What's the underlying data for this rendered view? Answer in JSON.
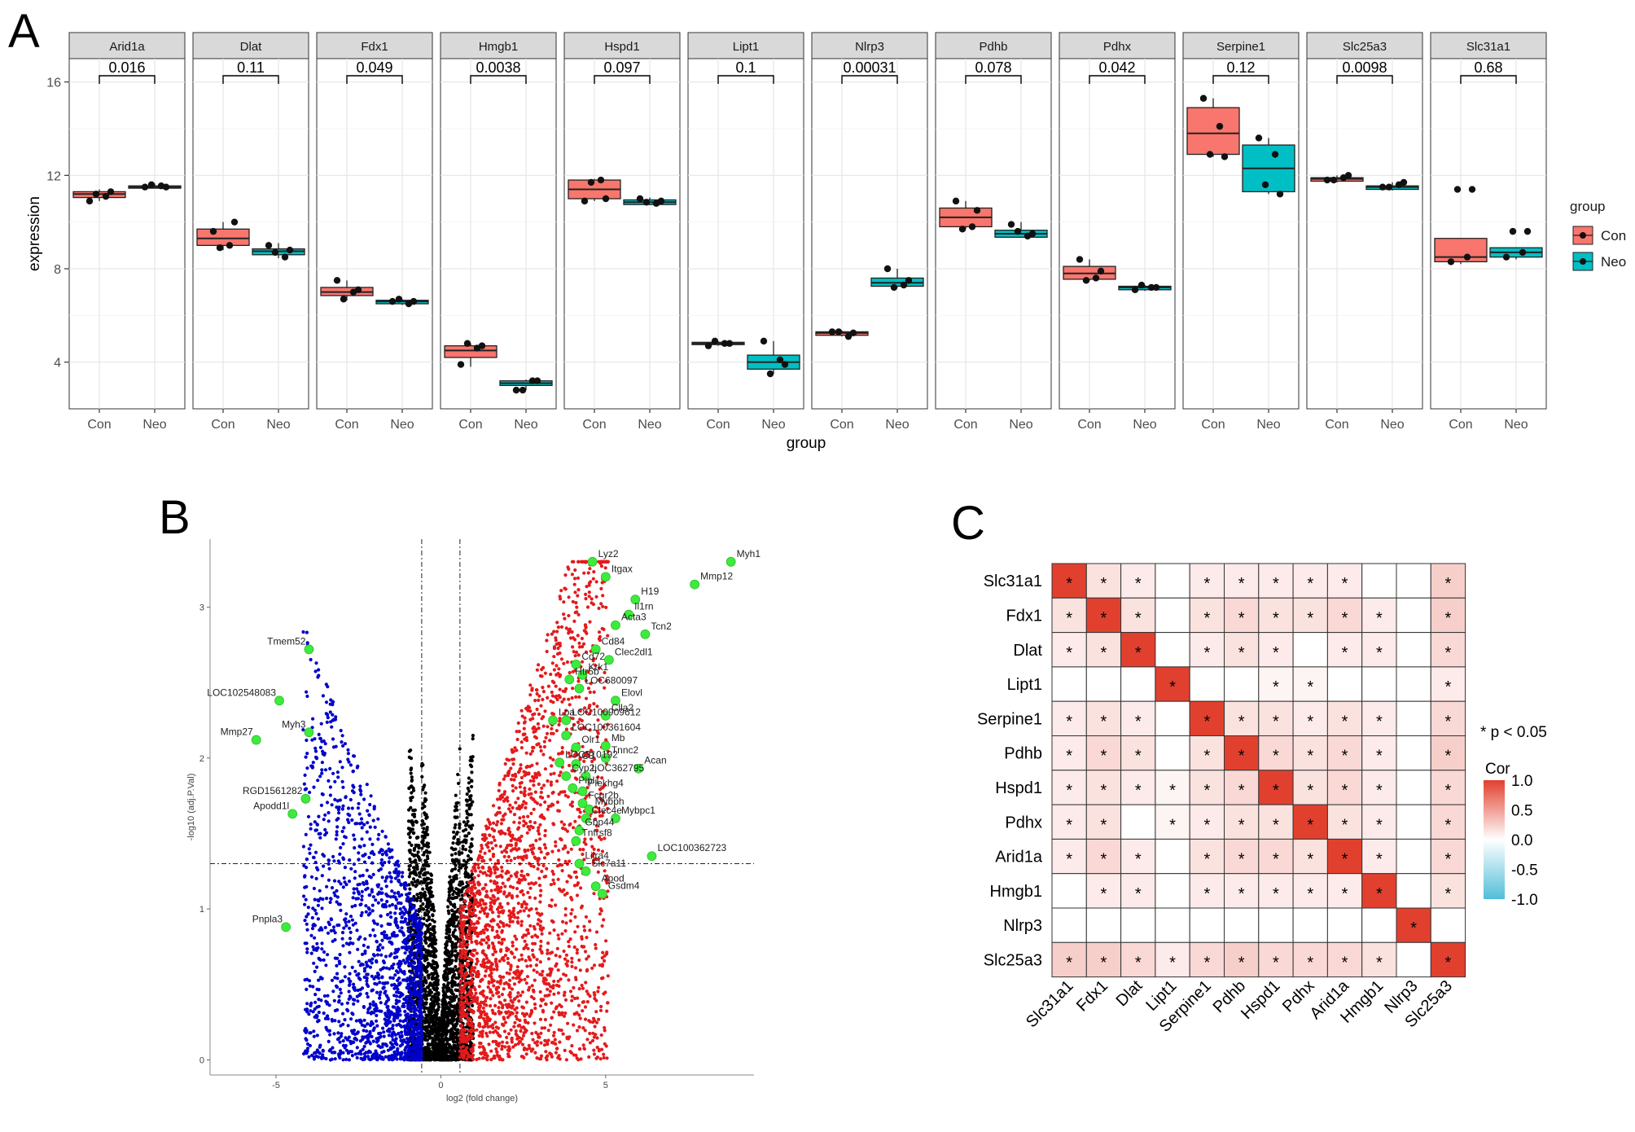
{
  "panels": {
    "a": "A",
    "b": "B",
    "c": "C"
  },
  "colors": {
    "con": "#F8766D",
    "neo": "#00BFC4",
    "down": "#0000CC",
    "up": "#E41A1C",
    "ns": "#000000",
    "highlight": "#3DEB3D"
  },
  "chart_data": [
    {
      "type": "box",
      "panel": "A",
      "ylabel": "expression",
      "xlabel": "group",
      "ylim": [
        2,
        17
      ],
      "yticks": [
        4,
        8,
        12,
        16
      ],
      "groups": [
        "Con",
        "Neo"
      ],
      "legend": {
        "title": "group",
        "items": [
          "Con",
          "Neo"
        ],
        "position": "right"
      },
      "facets": [
        {
          "gene": "Arid1a",
          "p": "0.016",
          "con": {
            "q1": 11.05,
            "median": 11.2,
            "q3": 11.3,
            "min": 10.9,
            "max": 11.4,
            "points": [
              10.9,
              11.1,
              11.2,
              11.3
            ]
          },
          "neo": {
            "q1": 11.45,
            "median": 11.5,
            "q3": 11.55,
            "min": 11.45,
            "max": 11.65,
            "points": [
              11.5,
              11.55,
              11.6,
              11.5
            ]
          }
        },
        {
          "gene": "Dlat",
          "p": "0.11",
          "con": {
            "q1": 9.0,
            "median": 9.3,
            "q3": 9.7,
            "min": 8.8,
            "max": 10.0,
            "points": [
              9.6,
              9.0,
              8.9,
              10.0
            ]
          },
          "neo": {
            "q1": 8.6,
            "median": 8.75,
            "q3": 8.85,
            "min": 8.45,
            "max": 9.1,
            "points": [
              9.0,
              8.5,
              8.7,
              8.8
            ]
          }
        },
        {
          "gene": "Fdx1",
          "p": "0.049",
          "con": {
            "q1": 6.85,
            "median": 7.0,
            "q3": 7.2,
            "min": 6.65,
            "max": 7.5,
            "points": [
              7.5,
              7.0,
              6.7,
              7.1
            ]
          },
          "neo": {
            "q1": 6.5,
            "median": 6.6,
            "q3": 6.65,
            "min": 6.45,
            "max": 6.7,
            "points": [
              6.6,
              6.5,
              6.7,
              6.6
            ]
          }
        },
        {
          "gene": "Hmgb1",
          "p": "0.0038",
          "con": {
            "q1": 4.2,
            "median": 4.5,
            "q3": 4.7,
            "min": 3.8,
            "max": 4.8,
            "points": [
              3.9,
              4.6,
              4.8,
              4.7
            ]
          },
          "neo": {
            "q1": 3.0,
            "median": 3.1,
            "q3": 3.2,
            "min": 2.8,
            "max": 3.25,
            "points": [
              2.8,
              3.2,
              2.8,
              3.2
            ]
          }
        },
        {
          "gene": "Hspd1",
          "p": "0.097",
          "con": {
            "q1": 11.0,
            "median": 11.4,
            "q3": 11.8,
            "min": 10.9,
            "max": 11.85,
            "points": [
              10.9,
              11.8,
              11.7,
              11.0
            ]
          },
          "neo": {
            "q1": 10.75,
            "median": 10.85,
            "q3": 10.95,
            "min": 10.75,
            "max": 11.05,
            "points": [
              11.0,
              10.8,
              10.85,
              10.9
            ]
          }
        },
        {
          "gene": "Lipt1",
          "p": "0.1",
          "con": {
            "q1": 4.75,
            "median": 4.8,
            "q3": 4.85,
            "min": 4.7,
            "max": 4.9,
            "points": [
              4.7,
              4.8,
              4.9,
              4.8
            ]
          },
          "neo": {
            "q1": 3.7,
            "median": 4.0,
            "q3": 4.3,
            "min": 3.5,
            "max": 4.9,
            "points": [
              4.9,
              4.1,
              3.5,
              3.9
            ]
          }
        },
        {
          "gene": "Nlrp3",
          "p": "0.00031",
          "con": {
            "q1": 5.15,
            "median": 5.25,
            "q3": 5.3,
            "min": 5.1,
            "max": 5.35,
            "points": [
              5.3,
              5.1,
              5.3,
              5.25
            ]
          },
          "neo": {
            "q1": 7.25,
            "median": 7.4,
            "q3": 7.6,
            "min": 7.2,
            "max": 8.0,
            "points": [
              8.0,
              7.3,
              7.2,
              7.5
            ]
          }
        },
        {
          "gene": "Pdhb",
          "p": "0.078",
          "con": {
            "q1": 9.8,
            "median": 10.2,
            "q3": 10.6,
            "min": 9.7,
            "max": 10.9,
            "points": [
              10.9,
              9.8,
              9.7,
              10.5
            ]
          },
          "neo": {
            "q1": 9.35,
            "median": 9.5,
            "q3": 9.65,
            "min": 9.35,
            "max": 10.0,
            "points": [
              9.9,
              9.4,
              9.6,
              9.5
            ]
          }
        },
        {
          "gene": "Pdhx",
          "p": "0.042",
          "con": {
            "q1": 7.55,
            "median": 7.8,
            "q3": 8.1,
            "min": 7.5,
            "max": 8.4,
            "points": [
              8.4,
              7.6,
              7.5,
              7.9
            ]
          },
          "neo": {
            "q1": 7.1,
            "median": 7.2,
            "q3": 7.25,
            "min": 7.05,
            "max": 7.3,
            "points": [
              7.1,
              7.2,
              7.3,
              7.2
            ]
          }
        },
        {
          "gene": "Serpine1",
          "p": "0.12",
          "con": {
            "q1": 12.9,
            "median": 13.8,
            "q3": 14.9,
            "min": 12.8,
            "max": 15.3,
            "points": [
              15.3,
              14.1,
              12.9,
              12.8
            ]
          },
          "neo": {
            "q1": 11.3,
            "median": 12.3,
            "q3": 13.3,
            "min": 11.2,
            "max": 13.6,
            "points": [
              13.6,
              12.9,
              11.6,
              11.2
            ]
          }
        },
        {
          "gene": "Slc25a3",
          "p": "0.0098",
          "con": {
            "q1": 11.75,
            "median": 11.85,
            "q3": 11.9,
            "min": 11.7,
            "max": 12.0,
            "points": [
              11.8,
              11.9,
              11.8,
              12.0
            ]
          },
          "neo": {
            "q1": 11.4,
            "median": 11.5,
            "q3": 11.55,
            "min": 11.35,
            "max": 11.7,
            "points": [
              11.5,
              11.6,
              11.5,
              11.7
            ]
          }
        },
        {
          "gene": "Slc31a1",
          "p": "0.68",
          "con": {
            "q1": 8.3,
            "median": 8.5,
            "q3": 9.3,
            "min": 8.2,
            "max": 9.3,
            "points": [
              8.3,
              8.5,
              11.4,
              11.4
            ]
          },
          "neo": {
            "q1": 8.5,
            "median": 8.7,
            "q3": 8.9,
            "min": 8.4,
            "max": 8.9,
            "points": [
              8.5,
              8.7,
              9.6,
              9.6
            ]
          }
        }
      ]
    },
    {
      "type": "scatter",
      "panel": "B",
      "title": "",
      "xlabel": "log2 (fold change)",
      "ylabel": "-log10 (adj.P.Val)",
      "xlim": [
        -7,
        9.5
      ],
      "ylim": [
        -0.1,
        3.45
      ],
      "xticks": [
        -5,
        0,
        5
      ],
      "yticks": [
        0,
        1,
        2,
        3
      ],
      "fc_cutoff": 0.58,
      "p_cutoff": 1.3,
      "labeled_genes": [
        {
          "label": "Myh1",
          "x": 8.8,
          "y": 3.3
        },
        {
          "label": "Lyz2",
          "x": 4.6,
          "y": 3.3
        },
        {
          "label": "Itgax",
          "x": 5.0,
          "y": 3.2
        },
        {
          "label": "H19",
          "x": 5.9,
          "y": 3.05
        },
        {
          "label": "Mmp12",
          "x": 7.7,
          "y": 3.15
        },
        {
          "label": "Il1rn",
          "x": 5.7,
          "y": 2.95
        },
        {
          "label": "Acta3",
          "x": 5.3,
          "y": 2.88
        },
        {
          "label": "Tcn2",
          "x": 6.2,
          "y": 2.82
        },
        {
          "label": "Cd84",
          "x": 4.7,
          "y": 2.72
        },
        {
          "label": "Cd72",
          "x": 4.1,
          "y": 2.62
        },
        {
          "label": "Clec2dl1",
          "x": 5.1,
          "y": 2.65
        },
        {
          "label": "Krk1",
          "x": 4.3,
          "y": 2.55
        },
        {
          "label": "Htr5b",
          "x": 3.9,
          "y": 2.52
        },
        {
          "label": "LOC680097",
          "x": 4.2,
          "y": 2.46
        },
        {
          "label": "Elovl",
          "x": 5.3,
          "y": 2.38
        },
        {
          "label": "Clla2",
          "x": 5.0,
          "y": 2.28
        },
        {
          "label": "Lpa",
          "x": 3.4,
          "y": 2.25
        },
        {
          "label": "LOC100909612",
          "x": 3.8,
          "y": 2.25
        },
        {
          "label": "LOC100361604",
          "x": 3.8,
          "y": 2.15
        },
        {
          "label": "Olr1",
          "x": 4.1,
          "y": 2.07
        },
        {
          "label": "Mb",
          "x": 5.0,
          "y": 2.08
        },
        {
          "label": "Tnnc2",
          "x": 5.0,
          "y": 2.0
        },
        {
          "label": "Acan",
          "x": 6.0,
          "y": 1.93
        },
        {
          "label": "LOC310192",
          "x": 3.6,
          "y": 1.97
        },
        {
          "label": "C3",
          "x": 4.1,
          "y": 1.96
        },
        {
          "label": "LOC362795",
          "x": 4.4,
          "y": 1.88
        },
        {
          "label": "Cyp2j",
          "x": 3.8,
          "y": 1.88
        },
        {
          "label": "Pipl1",
          "x": 4.0,
          "y": 1.8
        },
        {
          "label": "Plekhg4",
          "x": 4.3,
          "y": 1.78
        },
        {
          "label": "Fcgr2b",
          "x": 4.3,
          "y": 1.7
        },
        {
          "label": "Mybph",
          "x": 4.5,
          "y": 1.66
        },
        {
          "label": "Clec4e",
          "x": 4.4,
          "y": 1.6
        },
        {
          "label": "Mybpc1",
          "x": 5.3,
          "y": 1.6
        },
        {
          "label": "Gbp44",
          "x": 4.2,
          "y": 1.52
        },
        {
          "label": "Tnfrsf8",
          "x": 4.1,
          "y": 1.45
        },
        {
          "label": "LOC100362723",
          "x": 6.4,
          "y": 1.35
        },
        {
          "label": "Lilra4",
          "x": 4.2,
          "y": 1.3
        },
        {
          "label": "Slc7a11",
          "x": 4.4,
          "y": 1.25
        },
        {
          "label": "Apod",
          "x": 4.7,
          "y": 1.15
        },
        {
          "label": "Gsdm4",
          "x": 4.9,
          "y": 1.1
        },
        {
          "label": "Tmem52",
          "x": -4.0,
          "y": 2.72
        },
        {
          "label": "LOC102548083",
          "x": -4.9,
          "y": 2.38
        },
        {
          "label": "Mmp27",
          "x": -5.6,
          "y": 2.12
        },
        {
          "label": "Myh3",
          "x": -4.0,
          "y": 2.17
        },
        {
          "label": "RGD1561282",
          "x": -4.1,
          "y": 1.73
        },
        {
          "label": "Apodd1l",
          "x": -4.5,
          "y": 1.63
        },
        {
          "label": "Pnpla3",
          "x": -4.7,
          "y": 0.88
        }
      ]
    },
    {
      "type": "heatmap",
      "panel": "C",
      "genes": [
        "Slc31a1",
        "Fdx1",
        "Dlat",
        "Lipt1",
        "Serpine1",
        "Pdhb",
        "Hspd1",
        "Pdhx",
        "Arid1a",
        "Hmgb1",
        "Nlrp3",
        "Slc25a3"
      ],
      "legend_title": "Cor",
      "legend_ticks": [
        "1.0",
        "0.5",
        "0.0",
        "-0.5",
        "-1.0"
      ],
      "note": "* p < 0.05",
      "matrix": [
        [
          1.0,
          0.15,
          0.1,
          0.0,
          0.1,
          0.1,
          0.1,
          0.1,
          0.1,
          0.0,
          0.0,
          0.25
        ],
        [
          0.15,
          1.0,
          0.15,
          0.0,
          0.15,
          0.2,
          0.15,
          0.15,
          0.2,
          0.1,
          0.0,
          0.25
        ],
        [
          0.1,
          0.15,
          1.0,
          0.0,
          0.1,
          0.15,
          0.1,
          0.0,
          0.1,
          0.1,
          0.0,
          0.2
        ],
        [
          0.0,
          0.0,
          0.0,
          1.0,
          0.0,
          0.0,
          0.05,
          0.05,
          0.0,
          0.0,
          0.0,
          0.1
        ],
        [
          0.1,
          0.15,
          0.1,
          0.0,
          1.0,
          0.15,
          0.15,
          0.1,
          0.15,
          0.1,
          0.0,
          0.2
        ],
        [
          0.1,
          0.2,
          0.15,
          0.0,
          0.15,
          1.0,
          0.2,
          0.15,
          0.2,
          0.1,
          0.0,
          0.25
        ],
        [
          0.1,
          0.15,
          0.1,
          0.05,
          0.15,
          0.2,
          1.0,
          0.15,
          0.2,
          0.1,
          0.0,
          0.2
        ],
        [
          0.1,
          0.15,
          0.0,
          0.05,
          0.1,
          0.15,
          0.15,
          1.0,
          0.15,
          0.1,
          0.0,
          0.2
        ],
        [
          0.1,
          0.2,
          0.1,
          0.0,
          0.15,
          0.2,
          0.2,
          0.15,
          1.0,
          0.1,
          0.0,
          0.2
        ],
        [
          0.0,
          0.1,
          0.1,
          0.0,
          0.1,
          0.1,
          0.1,
          0.1,
          0.1,
          1.0,
          0.0,
          0.15
        ],
        [
          0.0,
          0.0,
          0.0,
          0.0,
          0.0,
          0.0,
          0.0,
          0.0,
          0.0,
          0.0,
          1.0,
          0.0
        ],
        [
          0.25,
          0.25,
          0.2,
          0.1,
          0.2,
          0.25,
          0.2,
          0.2,
          0.2,
          0.15,
          0.0,
          1.0
        ]
      ],
      "stars": [
        [
          1,
          1,
          1,
          0,
          1,
          1,
          1,
          1,
          1,
          0,
          0,
          1
        ],
        [
          1,
          1,
          1,
          0,
          1,
          1,
          1,
          1,
          1,
          1,
          0,
          1
        ],
        [
          1,
          1,
          1,
          0,
          1,
          1,
          1,
          0,
          1,
          1,
          0,
          1
        ],
        [
          0,
          0,
          0,
          1,
          0,
          0,
          1,
          1,
          0,
          0,
          0,
          1
        ],
        [
          1,
          1,
          1,
          0,
          1,
          1,
          1,
          1,
          1,
          1,
          0,
          1
        ],
        [
          1,
          1,
          1,
          0,
          1,
          1,
          1,
          1,
          1,
          1,
          0,
          1
        ],
        [
          1,
          1,
          1,
          1,
          1,
          1,
          1,
          1,
          1,
          1,
          0,
          1
        ],
        [
          1,
          1,
          0,
          1,
          1,
          1,
          1,
          1,
          1,
          1,
          0,
          1
        ],
        [
          1,
          1,
          1,
          0,
          1,
          1,
          1,
          1,
          1,
          1,
          0,
          1
        ],
        [
          0,
          1,
          1,
          0,
          1,
          1,
          1,
          1,
          1,
          1,
          0,
          1
        ],
        [
          0,
          0,
          0,
          0,
          0,
          0,
          0,
          0,
          0,
          0,
          1,
          0
        ],
        [
          1,
          1,
          1,
          1,
          1,
          1,
          1,
          1,
          1,
          1,
          0,
          1
        ]
      ]
    }
  ]
}
